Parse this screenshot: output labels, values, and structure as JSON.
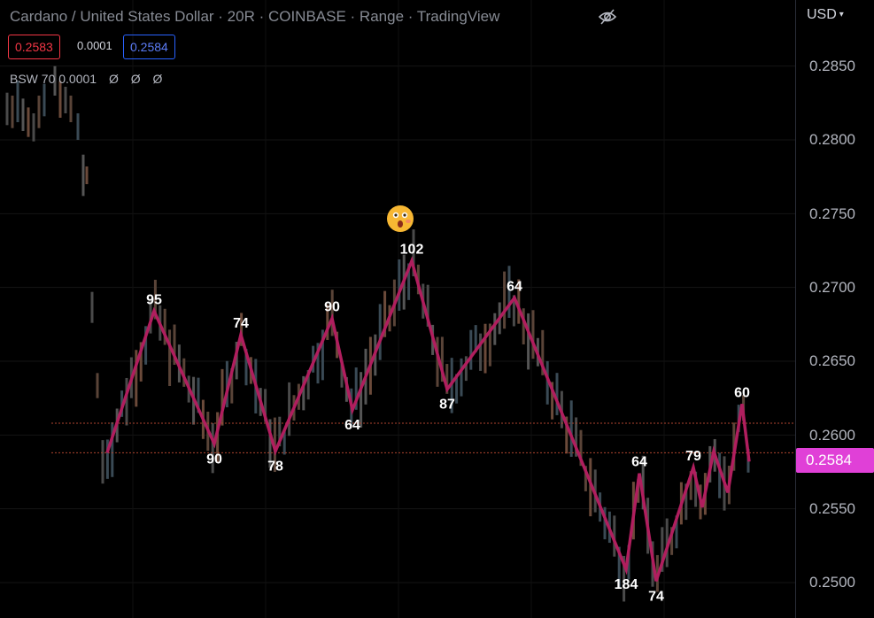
{
  "header": {
    "title": "Cardano / United States Dollar · 20R · COINBASE · Range · TradingView"
  },
  "quote": {
    "bid": "0.2583",
    "spread": "0.0001",
    "ask": "0.2584",
    "bid_color": "#f23645",
    "ask_color": "#2962ff"
  },
  "indicator": {
    "label": "BSW 70 0.0001",
    "values": [
      "Ø",
      "Ø",
      "Ø"
    ]
  },
  "icons": {
    "visibility": "eye-slash-icon",
    "emoji": "astonished-face-emoji-icon"
  },
  "price_axis": {
    "currency": "USD",
    "ticks": [
      "0.2850",
      "0.2800",
      "0.2750",
      "0.2700",
      "0.2650",
      "0.2600",
      "0.2550",
      "0.2500"
    ],
    "last_price": "0.2584",
    "last_price_color": "#e040d7"
  },
  "chart_data": {
    "type": "line",
    "description_series": "ZigZag swing legs with bar counts",
    "series": [
      {
        "values_price": [
          0.2588,
          0.2684,
          0.2594,
          0.2668,
          0.2589,
          0.2679,
          0.2617,
          0.2718,
          0.2631,
          0.2693,
          0.2509,
          0.2574,
          0.2501,
          0.2578,
          0.2551,
          0.2589,
          0.2561,
          0.2621,
          0.2582
        ],
        "swing_labels": [
          "",
          "95",
          "90",
          "74",
          "78",
          "90",
          "64",
          "102",
          "87",
          "64",
          "184",
          "64",
          "74",
          "79",
          "",
          "",
          "",
          "60",
          ""
        ]
      }
    ],
    "horizontal_lines": [
      0.2608,
      0.2588
    ],
    "ylim": [
      0.248,
      0.2875
    ],
    "color": "#b01e5e"
  }
}
